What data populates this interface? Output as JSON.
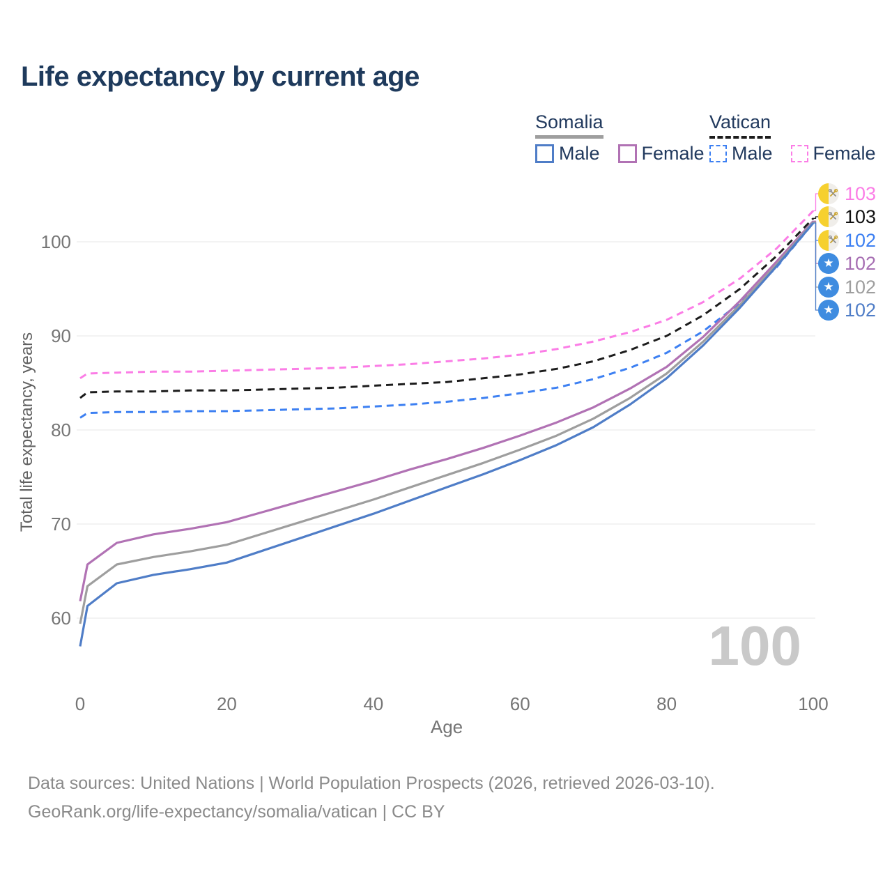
{
  "title": "Life expectancy by current age",
  "legend": {
    "groups": [
      {
        "label": "Somalia",
        "key_color": "#9e9e9e",
        "key_style": "solid",
        "items": [
          {
            "label": "Male",
            "color": "#4f7dc7",
            "style": "solid"
          },
          {
            "label": "Female",
            "color": "#b172b4",
            "style": "solid"
          }
        ]
      },
      {
        "label": "Vatican",
        "key_color": "#1c1c1c",
        "key_style": "dashed",
        "items": [
          {
            "label": "Male",
            "color": "#3d80f2",
            "style": "dashed"
          },
          {
            "label": "Female",
            "color": "#fb7de6",
            "style": "dashed"
          }
        ]
      }
    ]
  },
  "chart_data": {
    "type": "line",
    "title": "Life expectancy by current age",
    "xlabel": "Age",
    "ylabel": "Total life expectancy, years",
    "xlim": [
      0,
      100
    ],
    "ylim": [
      56,
      104
    ],
    "x_ticks": [
      0,
      20,
      40,
      60,
      80,
      100
    ],
    "y_ticks": [
      60,
      70,
      80,
      90,
      100
    ],
    "grid": "horizontal-only",
    "legend_position": "top-right",
    "ages": [
      0,
      1,
      5,
      10,
      15,
      20,
      25,
      30,
      35,
      40,
      45,
      50,
      55,
      60,
      65,
      70,
      75,
      80,
      85,
      90,
      95,
      100
    ],
    "series": [
      {
        "name": "Vatican Female",
        "country": "Vatican",
        "color": "#fb7de6",
        "dash": true,
        "end_label": 103,
        "values": [
          85.5,
          86.0,
          86.1,
          86.2,
          86.2,
          86.3,
          86.4,
          86.5,
          86.6,
          86.8,
          87.0,
          87.3,
          87.6,
          88.0,
          88.6,
          89.4,
          90.4,
          91.7,
          93.6,
          96.1,
          99.3,
          103.3
        ]
      },
      {
        "name": "Vatican",
        "country": "Vatican",
        "color": "#1c1c1c",
        "dash": true,
        "end_label": 103,
        "values": [
          83.4,
          84.0,
          84.1,
          84.1,
          84.2,
          84.2,
          84.3,
          84.4,
          84.5,
          84.7,
          84.9,
          85.1,
          85.5,
          85.9,
          86.5,
          87.3,
          88.5,
          90.0,
          92.2,
          95.0,
          98.5,
          102.5
        ]
      },
      {
        "name": "Vatican Male",
        "country": "Vatican",
        "color": "#3d80f2",
        "dash": true,
        "end_label": 102,
        "values": [
          81.3,
          81.8,
          81.9,
          81.9,
          82.0,
          82.0,
          82.1,
          82.2,
          82.3,
          82.5,
          82.7,
          83.0,
          83.4,
          83.9,
          84.5,
          85.4,
          86.6,
          88.2,
          90.5,
          93.5,
          97.3,
          102.0
        ]
      },
      {
        "name": "Somalia Female",
        "country": "Somalia",
        "color": "#b172b4",
        "dash": false,
        "end_label": 102,
        "values": [
          61.8,
          65.7,
          68.0,
          68.9,
          69.5,
          70.2,
          71.3,
          72.4,
          73.5,
          74.6,
          75.8,
          76.9,
          78.1,
          79.4,
          80.8,
          82.4,
          84.4,
          86.7,
          89.9,
          93.7,
          97.9,
          102.2
        ]
      },
      {
        "name": "Somalia",
        "country": "Somalia",
        "color": "#9e9e9e",
        "dash": false,
        "end_label": 102,
        "values": [
          59.4,
          63.4,
          65.7,
          66.5,
          67.1,
          67.8,
          69.0,
          70.2,
          71.4,
          72.6,
          73.9,
          75.2,
          76.5,
          77.9,
          79.4,
          81.2,
          83.4,
          86.0,
          89.4,
          93.3,
          97.6,
          102.1
        ]
      },
      {
        "name": "Somalia Male",
        "country": "Somalia",
        "color": "#4f7dc7",
        "dash": false,
        "end_label": 102,
        "values": [
          57.0,
          61.3,
          63.7,
          64.6,
          65.2,
          65.9,
          67.2,
          68.5,
          69.8,
          71.1,
          72.5,
          73.9,
          75.3,
          76.8,
          78.4,
          80.3,
          82.7,
          85.5,
          89.0,
          93.0,
          97.4,
          102.0
        ]
      }
    ],
    "watermark": "100"
  },
  "end_labels": [
    {
      "value": "103",
      "color": "#fb7de6",
      "flag": "vatican"
    },
    {
      "value": "103",
      "color": "#111111",
      "flag": "vatican"
    },
    {
      "value": "102",
      "color": "#3d80f2",
      "flag": "vatican"
    },
    {
      "value": "102",
      "color": "#a76fb3",
      "flag": "somalia"
    },
    {
      "value": "102",
      "color": "#9e9e9e",
      "flag": "somalia"
    },
    {
      "value": "102",
      "color": "#4f7dc7",
      "flag": "somalia"
    }
  ],
  "icons": {
    "somalia_star": "★"
  },
  "watermark": "100",
  "axis": {
    "x_label": "Age",
    "y_label": "Total life expectancy, years"
  },
  "footer": {
    "line1": "Data sources: United Nations | World Population Prospects (2026, retrieved 2026-03-10).",
    "line2": "GeoRank.org/life-expectancy/somalia/vatican | CC BY"
  }
}
